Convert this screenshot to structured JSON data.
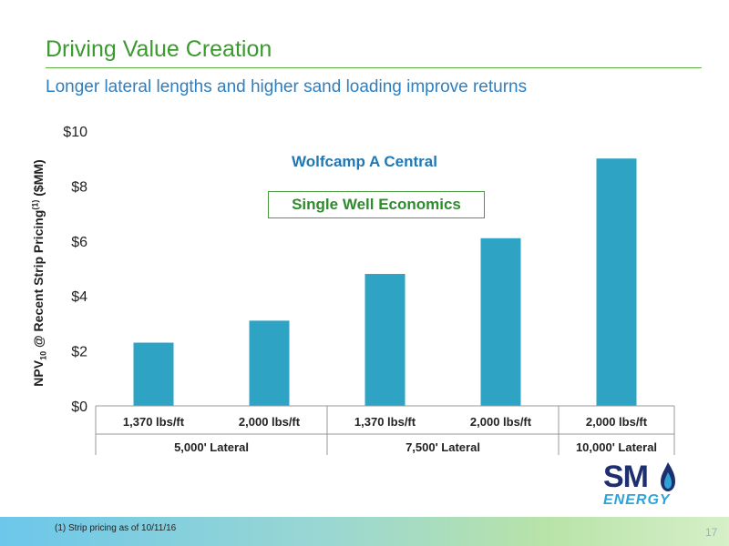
{
  "header": {
    "title": "Driving Value Creation",
    "subtitle": "Longer lateral lengths and higher sand loading improve returns"
  },
  "ylabel": {
    "pre": "NPV",
    "sub": "10",
    "mid": " @ Recent Strip Pricing",
    "sup": "(1)",
    "post": " ($MM)"
  },
  "annotations": {
    "region": "Wolfcamp A Central",
    "box": "Single Well Economics"
  },
  "logo": {
    "main": "SM",
    "sub": "ENERGY"
  },
  "footer": {
    "note": "(1)   Strip pricing as of 10/11/16",
    "page": "17"
  },
  "colors": {
    "bar": "#2ea3c4",
    "title": "#3a9a2e",
    "subtitle": "#2f7fbf"
  },
  "chart_data": {
    "type": "bar",
    "categories": [
      "1,370 lbs/ft",
      "2,000 lbs/ft",
      "1,370 lbs/ft",
      "2,000 lbs/ft",
      "2,000 lbs/ft"
    ],
    "groups": [
      {
        "label": "5,000' Lateral",
        "count": 2
      },
      {
        "label": "7,500' Lateral",
        "count": 2
      },
      {
        "label": "10,000' Lateral",
        "count": 1
      }
    ],
    "values": [
      2.3,
      3.1,
      4.8,
      6.1,
      9.0
    ],
    "ylim": [
      0,
      10
    ],
    "yticks": [
      0,
      2,
      4,
      6,
      8,
      10
    ],
    "ytick_labels": [
      "$0",
      "$2",
      "$4",
      "$6",
      "$8",
      "$10"
    ],
    "grid": false,
    "legend": "none"
  }
}
